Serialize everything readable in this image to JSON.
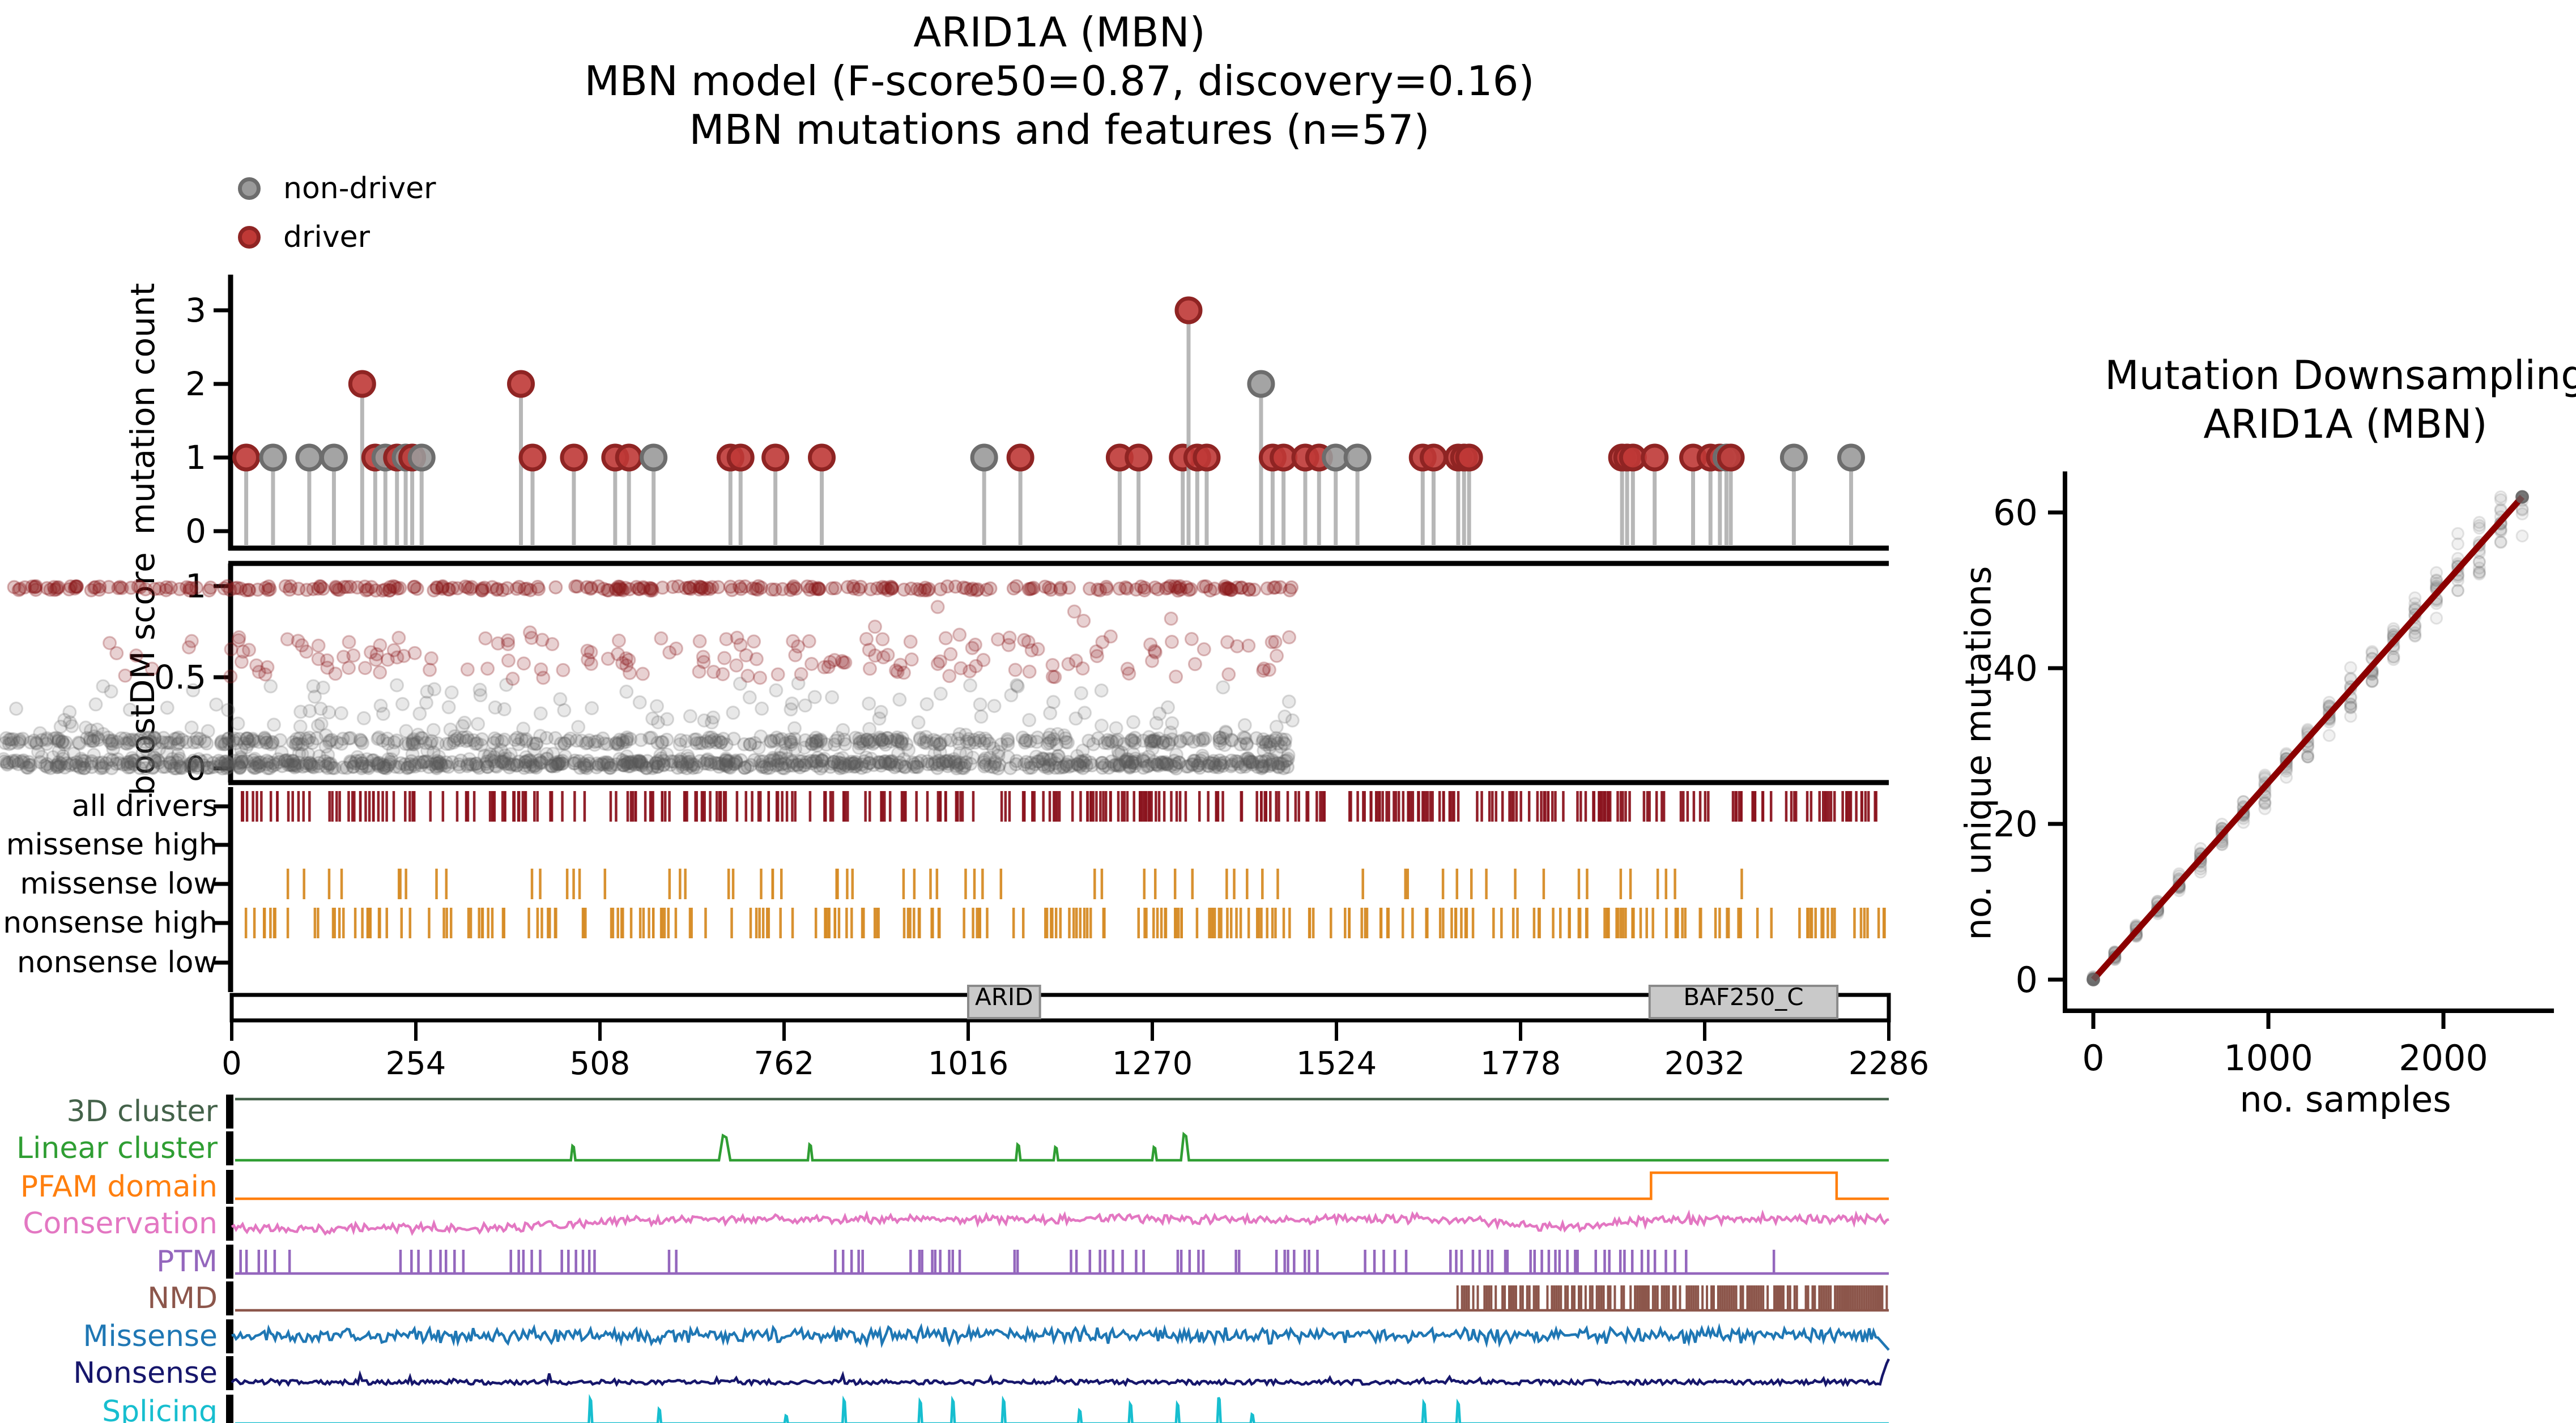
{
  "title": {
    "line1": "ARID1A (MBN)",
    "line2": "MBN model (F-score50=0.87, discovery=0.16)",
    "line3": "MBN mutations and features (n=57)"
  },
  "legend": {
    "items": [
      {
        "label": "non-driver",
        "fill": "#9a9a9a",
        "edge": "#6d6d6d"
      },
      {
        "label": "driver",
        "fill": "#bf3936",
        "edge": "#8f2423"
      }
    ]
  },
  "chart_data": [
    {
      "id": "mutations-and-features",
      "type": "scatter",
      "subtype": "needle-plot-with-tracks",
      "xlim": [
        0,
        2286
      ],
      "x_ticks": [
        0,
        254,
        508,
        762,
        1016,
        1270,
        1524,
        1778,
        2032,
        2286
      ],
      "mutation_count_panel": {
        "ylabel": "mutation count",
        "y_ticks": [
          0,
          1,
          2,
          3
        ],
        "ylim": [
          0,
          3
        ],
        "stem_color": "#b0b0b0",
        "driver_color": "#bf3936",
        "driver_edge": "#8f2423",
        "nondriver_color": "#9a9a9a",
        "nondriver_edge": "#6d6d6d",
        "lollipops": [
          [
            20,
            1,
            "driver"
          ],
          [
            57,
            1,
            "non-driver"
          ],
          [
            107,
            1,
            "non-driver"
          ],
          [
            141,
            1,
            "non-driver"
          ],
          [
            180,
            2,
            "driver"
          ],
          [
            198,
            1,
            "driver"
          ],
          [
            212,
            1,
            "non-driver"
          ],
          [
            228,
            1,
            "driver"
          ],
          [
            240,
            1,
            "non-driver"
          ],
          [
            249,
            1,
            "driver"
          ],
          [
            262,
            1,
            "non-driver"
          ],
          [
            399,
            2,
            "driver"
          ],
          [
            415,
            1,
            "driver"
          ],
          [
            472,
            1,
            "driver"
          ],
          [
            529,
            1,
            "driver"
          ],
          [
            548,
            1,
            "driver"
          ],
          [
            582,
            1,
            "non-driver"
          ],
          [
            688,
            1,
            "driver"
          ],
          [
            702,
            1,
            "driver"
          ],
          [
            750,
            1,
            "driver"
          ],
          [
            814,
            1,
            "driver"
          ],
          [
            1038,
            1,
            "non-driver"
          ],
          [
            1088,
            1,
            "driver"
          ],
          [
            1225,
            1,
            "driver"
          ],
          [
            1251,
            1,
            "driver"
          ],
          [
            1312,
            1,
            "driver"
          ],
          [
            1320,
            3,
            "driver"
          ],
          [
            1332,
            1,
            "driver"
          ],
          [
            1345,
            1,
            "driver"
          ],
          [
            1420,
            2,
            "non-driver"
          ],
          [
            1436,
            1,
            "driver"
          ],
          [
            1451,
            1,
            "driver"
          ],
          [
            1481,
            1,
            "driver"
          ],
          [
            1500,
            1,
            "driver"
          ],
          [
            1523,
            1,
            "non-driver"
          ],
          [
            1553,
            1,
            "non-driver"
          ],
          [
            1643,
            1,
            "driver"
          ],
          [
            1658,
            1,
            "driver"
          ],
          [
            1692,
            1,
            "driver"
          ],
          [
            1700,
            1,
            "driver"
          ],
          [
            1707,
            1,
            "driver"
          ],
          [
            1918,
            1,
            "driver"
          ],
          [
            1925,
            1,
            "driver"
          ],
          [
            1933,
            1,
            "driver"
          ],
          [
            1963,
            1,
            "driver"
          ],
          [
            2016,
            1,
            "driver"
          ],
          [
            2040,
            1,
            "driver"
          ],
          [
            2053,
            1,
            "driver"
          ],
          [
            2062,
            1,
            "non-driver"
          ],
          [
            2068,
            1,
            "driver"
          ],
          [
            2155,
            1,
            "non-driver"
          ],
          [
            2234,
            1,
            "non-driver"
          ]
        ]
      },
      "boostdm_panel": {
        "ylabel": "boostDM score",
        "y_ticks": [
          0,
          0.5,
          1
        ],
        "ylim": [
          0,
          1
        ],
        "driver_color": "#8c1a1d",
        "nondriver_color": "#5a5a5a",
        "pattern": {
          "seed": 42,
          "red_top_band": {
            "n": 300,
            "score_range": [
              0.975,
              1.0
            ]
          },
          "red_mid": {
            "n": 170,
            "score_range": [
              0.48,
              0.72
            ]
          },
          "red_high_outliers": {
            "n": 8,
            "score_range": [
              0.72,
              0.9
            ]
          },
          "gray_base": {
            "n": 700,
            "score_range": [
              0.0,
              0.05
            ]
          },
          "gray_band": {
            "n": 390,
            "score_range": [
              0.13,
              0.17
            ]
          },
          "gray_scatter": {
            "n": 310,
            "score_range": [
              0.05,
              0.47
            ]
          }
        }
      },
      "consequence_tracks": [
        {
          "label": "all drivers",
          "color": "#8b141f",
          "pattern": {
            "n": 360,
            "range": [
              8,
              2280
            ],
            "seed": 7
          }
        },
        {
          "label": "missense high",
          "color": "#d68b25",
          "pattern": {
            "n": 0,
            "range": [
              0,
              0
            ],
            "seed": 1
          }
        },
        {
          "label": "missense low",
          "color": "#d68b25",
          "pattern": {
            "n": 64,
            "range": [
              25,
              2145
            ],
            "seed": 21
          }
        },
        {
          "label": "nonsense high",
          "color": "#d68b25",
          "pattern": {
            "n": 250,
            "range": [
              8,
              2280
            ],
            "seed": 33
          }
        },
        {
          "label": "nonsense low",
          "color": "#d68b25",
          "pattern": {
            "n": 0,
            "range": [
              0,
              0
            ],
            "seed": 2
          }
        }
      ],
      "protein_domains": [
        {
          "name": "ARID",
          "start": 1016,
          "end": 1115
        },
        {
          "name": "BAF250_C",
          "start": 1956,
          "end": 2215
        }
      ],
      "feature_tracks": [
        {
          "label": "3D cluster",
          "color": "#44624a",
          "kind": "flat_high"
        },
        {
          "label": "Linear cluster",
          "color": "#2f9e33",
          "kind": "spikes",
          "spikes": [
            [
              471,
              0.55,
              8
            ],
            [
              680,
              0.95,
              20
            ],
            [
              798,
              0.6,
              8
            ],
            [
              1085,
              0.6,
              8
            ],
            [
              1137,
              0.5,
              8
            ],
            [
              1273,
              0.5,
              8
            ],
            [
              1315,
              1.0,
              14
            ]
          ]
        },
        {
          "label": "PFAM domain",
          "color": "#ff7f0e",
          "kind": "step",
          "step": [
            1958,
            2214
          ]
        },
        {
          "label": "Conservation",
          "color": "#e377c2",
          "kind": "conservation",
          "seed": 3
        },
        {
          "label": "PTM",
          "color": "#9467bd",
          "kind": "spike_clusters",
          "seed": 17,
          "clusters": [
            [
              5,
              85,
              6
            ],
            [
              230,
              330,
              8
            ],
            [
              380,
              430,
              5
            ],
            [
              450,
              510,
              6
            ],
            [
              603,
              615,
              2
            ],
            [
              830,
              880,
              5
            ],
            [
              935,
              1010,
              9
            ],
            [
              1075,
              1092,
              2
            ],
            [
              1150,
              1265,
              9
            ],
            [
              1300,
              1345,
              5
            ],
            [
              1378,
              1400,
              2
            ],
            [
              1435,
              1505,
              7
            ],
            [
              1555,
              1625,
              5
            ],
            [
              1675,
              1770,
              9
            ],
            [
              1788,
              1865,
              9
            ],
            [
              1875,
              1995,
              11
            ],
            [
              2004,
              2012,
              1
            ],
            [
              2124,
              2132,
              1
            ]
          ]
        },
        {
          "label": "NMD",
          "color": "#8c564b",
          "kind": "block",
          "range": [
            1691,
            2286
          ],
          "density": 0.72,
          "seed": 5
        },
        {
          "label": "Missense",
          "color": "#1f77b4",
          "kind": "noise_end_drop",
          "seed": 9
        },
        {
          "label": "Nonsense",
          "color": "#16166b",
          "kind": "low_noise_end_spike",
          "seed": 13
        },
        {
          "label": "Splicing",
          "color": "#17becf",
          "kind": "spikes",
          "spikes": [
            [
              495,
              0.95,
              6
            ],
            [
              590,
              0.55,
              6
            ],
            [
              765,
              0.3,
              6
            ],
            [
              845,
              0.9,
              6
            ],
            [
              950,
              0.85,
              6
            ],
            [
              995,
              0.9,
              6
            ],
            [
              1065,
              0.9,
              6
            ],
            [
              1170,
              0.5,
              6
            ],
            [
              1240,
              0.75,
              6
            ],
            [
              1305,
              0.75,
              6
            ],
            [
              1362,
              1.0,
              6
            ],
            [
              1408,
              0.35,
              6
            ],
            [
              1645,
              0.8,
              6
            ],
            [
              1692,
              0.8,
              6
            ]
          ]
        }
      ]
    },
    {
      "id": "downsampling",
      "type": "scatter",
      "title_line1": "Mutation Downsampling",
      "title_line2": "ARID1A (MBN)",
      "xlabel": "no. samples",
      "ylabel": "no. unique mutations",
      "x_ticks": [
        0,
        1000,
        2000
      ],
      "y_ticks": [
        0,
        20,
        40,
        60
      ],
      "xlim": [
        0,
        2450
      ],
      "ylim": [
        0,
        62
      ],
      "trend_line": {
        "points": [
          [
            0,
            0
          ],
          [
            2450,
            62
          ]
        ],
        "color": "#8b0000"
      },
      "scatter": {
        "columns": 21,
        "x_step": 122.5,
        "points_per_column": 14,
        "color": "#777777",
        "seed": 11
      },
      "endpoint_markers": [
        [
          0,
          0
        ],
        [
          2450,
          62
        ]
      ]
    }
  ]
}
